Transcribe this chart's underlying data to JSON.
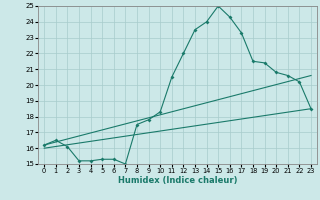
{
  "xlabel": "Humidex (Indice chaleur)",
  "xlim": [
    -0.5,
    23.5
  ],
  "ylim": [
    15,
    25
  ],
  "xticks": [
    0,
    1,
    2,
    3,
    4,
    5,
    6,
    7,
    8,
    9,
    10,
    11,
    12,
    13,
    14,
    15,
    16,
    17,
    18,
    19,
    20,
    21,
    22,
    23
  ],
  "yticks": [
    15,
    16,
    17,
    18,
    19,
    20,
    21,
    22,
    23,
    24,
    25
  ],
  "bg_color": "#cce8e8",
  "grid_color": "#a8cccc",
  "line_color": "#1a7a6a",
  "line1_x": [
    0,
    1,
    2,
    3,
    4,
    5,
    6,
    7,
    8,
    9,
    10,
    11,
    12,
    13,
    14,
    15,
    16,
    17,
    18,
    19,
    20,
    21,
    22,
    23
  ],
  "line1_y": [
    16.2,
    16.5,
    16.1,
    15.2,
    15.2,
    15.3,
    15.3,
    15.0,
    17.5,
    17.8,
    18.3,
    20.5,
    22.0,
    23.5,
    24.0,
    25.0,
    24.3,
    23.3,
    21.5,
    21.4,
    20.8,
    20.6,
    20.2,
    18.5
  ],
  "line2_x": [
    0,
    23
  ],
  "line2_y": [
    16.0,
    18.5
  ],
  "line3_x": [
    0,
    23
  ],
  "line3_y": [
    16.2,
    20.6
  ]
}
